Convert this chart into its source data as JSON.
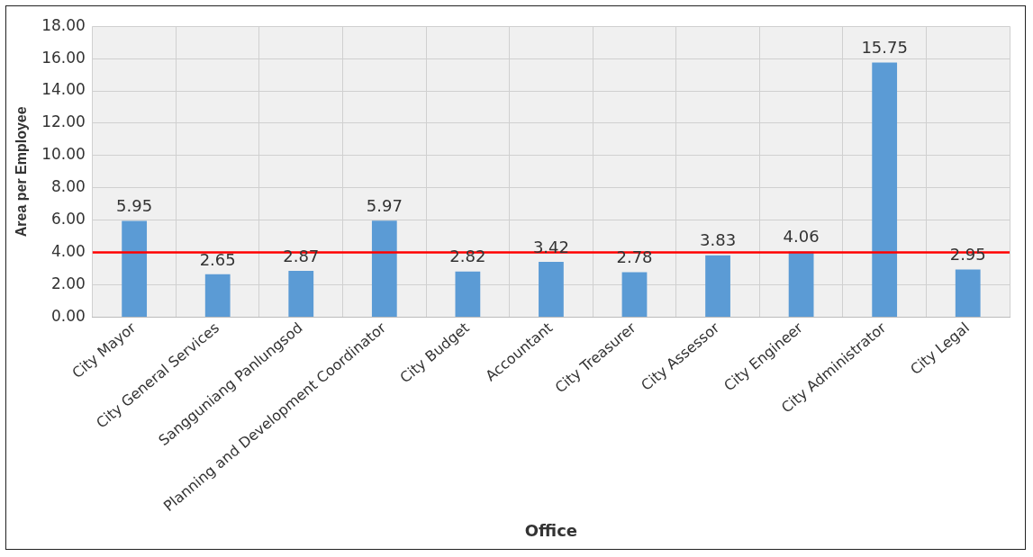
{
  "chart_data": {
    "type": "bar",
    "xlabel": "Office",
    "ylabel": "Area per Employee",
    "categories": [
      "City Mayor",
      "City General Services",
      "Sangguniang Panlungsod",
      "Planning and Development Coordinator",
      "City Budget",
      "Accountant",
      "City Treasurer",
      "City Assessor",
      "City Engineer",
      "City Administrator",
      "City Legal"
    ],
    "values": [
      5.95,
      2.65,
      2.87,
      5.97,
      2.82,
      3.42,
      2.78,
      3.83,
      4.06,
      15.75,
      2.95
    ],
    "color": "#5b9bd5",
    "ylim": [
      0,
      18
    ],
    "yticks": [
      {
        "value": 0,
        "label": "0.00"
      },
      {
        "value": 2,
        "label": "2.00"
      },
      {
        "value": 4,
        "label": "4.00"
      },
      {
        "value": 6,
        "label": "6.00"
      },
      {
        "value": 8,
        "label": "8.00"
      },
      {
        "value": 10,
        "label": "10.00"
      },
      {
        "value": 12,
        "label": "12.00"
      },
      {
        "value": 14,
        "label": "14.00"
      },
      {
        "value": 16,
        "label": "16.00"
      },
      {
        "value": 18,
        "label": "18.00"
      }
    ],
    "ref_lines": [
      {
        "axis": "y",
        "value": 4,
        "color": "#ff0000",
        "line_style": "solid"
      }
    ],
    "data_labels": true,
    "grid": true,
    "legend": false
  }
}
